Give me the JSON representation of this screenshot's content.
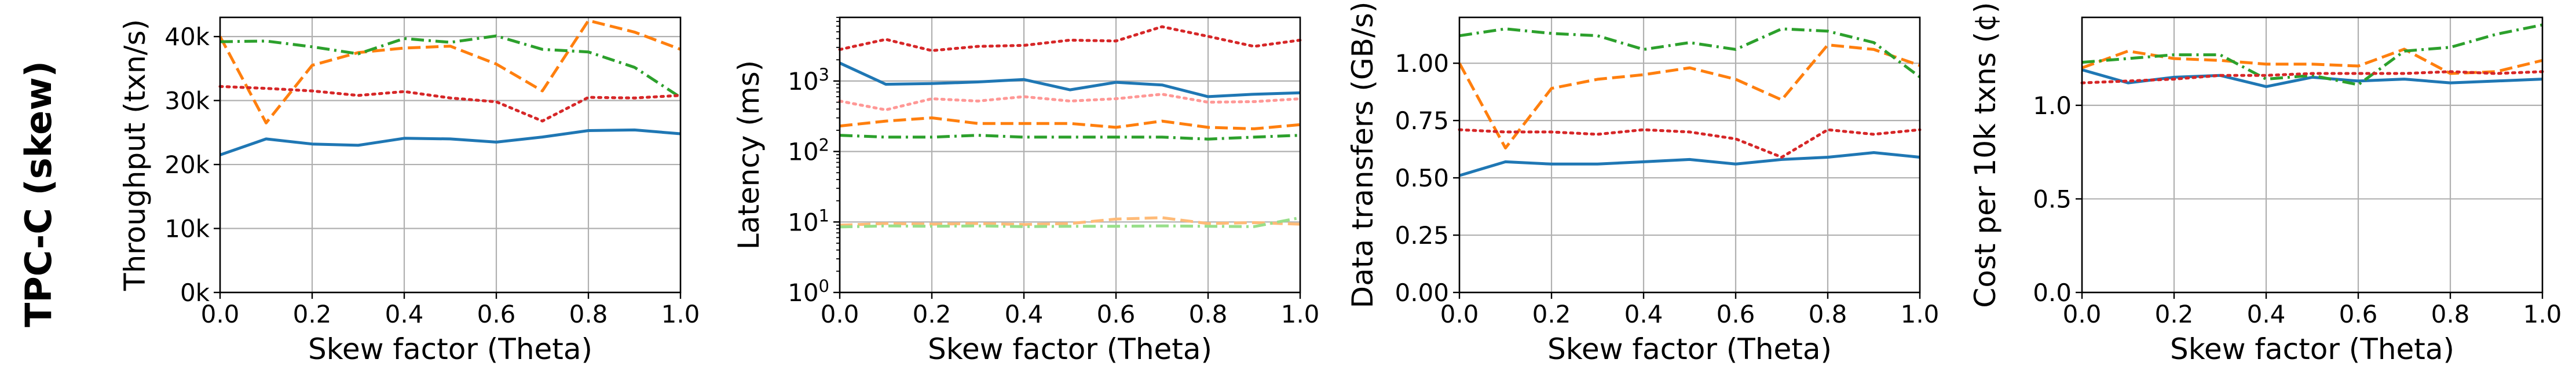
{
  "row_label": "TPC-C (skew)",
  "chart_data": [
    {
      "type": "line",
      "xlabel": "Skew factor (Theta)",
      "ylabel": "Throughput (txn/s)",
      "xlim": [
        0,
        1
      ],
      "ylim": [
        0,
        43000
      ],
      "yscale": "linear",
      "grid": true,
      "x_ticks": [
        0,
        0.2,
        0.4,
        0.6,
        0.8,
        1.0
      ],
      "x_tick_labels": [
        "0.0",
        "0.2",
        "0.4",
        "0.6",
        "0.8",
        "1.0"
      ],
      "y_ticks": [
        0,
        10000,
        20000,
        30000,
        40000
      ],
      "y_tick_labels": [
        "0k",
        "10k",
        "20k",
        "30k",
        "40k"
      ],
      "x": [
        0,
        0.1,
        0.2,
        0.3,
        0.4,
        0.5,
        0.6,
        0.7,
        0.8,
        0.9,
        1.0
      ],
      "series": [
        {
          "color": "#1f77b4",
          "style": "solid",
          "values": [
            21500,
            24000,
            23200,
            23000,
            24100,
            24000,
            23500,
            24300,
            25300,
            25400,
            24800
          ]
        },
        {
          "color": "#ff7f0e",
          "style": "dashed",
          "values": [
            40000,
            26500,
            35500,
            37500,
            38200,
            38500,
            35700,
            31500,
            42500,
            40700,
            38000
          ]
        },
        {
          "color": "#2ca02c",
          "style": "dashdot",
          "values": [
            39200,
            39300,
            38400,
            37300,
            39700,
            39100,
            40100,
            38000,
            37600,
            35200,
            30500
          ]
        },
        {
          "color": "#d62728",
          "style": "dotted",
          "values": [
            32200,
            31900,
            31500,
            30800,
            31400,
            30400,
            29800,
            26800,
            30500,
            30400,
            30800
          ]
        }
      ]
    },
    {
      "type": "line",
      "xlabel": "Skew factor (Theta)",
      "ylabel": "Latency (ms)",
      "xlim": [
        0,
        1
      ],
      "ylim": [
        1,
        8000
      ],
      "yscale": "log",
      "grid": true,
      "x_ticks": [
        0,
        0.2,
        0.4,
        0.6,
        0.8,
        1.0
      ],
      "x_tick_labels": [
        "0.0",
        "0.2",
        "0.4",
        "0.6",
        "0.8",
        "1.0"
      ],
      "y_ticks": [
        1,
        10,
        100,
        1000
      ],
      "y_tick_labels": [
        "10^0",
        "10^1",
        "10^2",
        "10^3"
      ],
      "x": [
        0,
        0.1,
        0.2,
        0.3,
        0.4,
        0.5,
        0.6,
        0.7,
        0.8,
        0.9,
        1.0
      ],
      "series": [
        {
          "color": "#1f77b4",
          "style": "solid",
          "values": [
            1800,
            900,
            920,
            970,
            1050,
            750,
            960,
            880,
            600,
            650,
            680
          ]
        },
        {
          "color": "#ff7f0e",
          "style": "dashed",
          "values": [
            230,
            270,
            300,
            250,
            250,
            250,
            220,
            270,
            220,
            210,
            240
          ]
        },
        {
          "color": "#2ca02c",
          "style": "dashdot",
          "values": [
            170,
            160,
            160,
            170,
            160,
            160,
            160,
            160,
            150,
            160,
            170
          ]
        },
        {
          "color": "#d62728",
          "style": "dotted",
          "values": [
            2800,
            3900,
            2700,
            3100,
            3200,
            3800,
            3700,
            5900,
            4300,
            3100,
            3800
          ]
        },
        {
          "color": "#ff9896",
          "style": "dotted",
          "values": [
            520,
            390,
            560,
            520,
            600,
            520,
            560,
            650,
            500,
            510,
            560
          ]
        },
        {
          "color": "#ffbb78",
          "style": "dashed",
          "values": [
            9,
            9.5,
            9.3,
            9.5,
            9.2,
            9.5,
            11,
            11.5,
            9.5,
            9.8,
            9.3
          ]
        },
        {
          "color": "#98df8a",
          "style": "dashdot",
          "values": [
            8.5,
            8.8,
            8.7,
            8.8,
            8.6,
            8.7,
            8.7,
            8.8,
            8.7,
            8.6,
            11.5
          ]
        }
      ]
    },
    {
      "type": "line",
      "xlabel": "Skew factor (Theta)",
      "ylabel": "Data transfers (GB/s)",
      "xlim": [
        0,
        1
      ],
      "ylim": [
        0,
        1.2
      ],
      "yscale": "linear",
      "grid": true,
      "x_ticks": [
        0,
        0.2,
        0.4,
        0.6,
        0.8,
        1.0
      ],
      "x_tick_labels": [
        "0.0",
        "0.2",
        "0.4",
        "0.6",
        "0.8",
        "1.0"
      ],
      "y_ticks": [
        0,
        0.25,
        0.5,
        0.75,
        1.0
      ],
      "y_tick_labels": [
        "0.00",
        "0.25",
        "0.50",
        "0.75",
        "1.00"
      ],
      "x": [
        0,
        0.1,
        0.2,
        0.3,
        0.4,
        0.5,
        0.6,
        0.7,
        0.8,
        0.9,
        1.0
      ],
      "series": [
        {
          "color": "#1f77b4",
          "style": "solid",
          "values": [
            0.51,
            0.57,
            0.56,
            0.56,
            0.57,
            0.58,
            0.56,
            0.58,
            0.59,
            0.61,
            0.59
          ]
        },
        {
          "color": "#ff7f0e",
          "style": "dashed",
          "values": [
            1.0,
            0.63,
            0.89,
            0.93,
            0.95,
            0.98,
            0.93,
            0.84,
            1.08,
            1.06,
            0.99
          ]
        },
        {
          "color": "#2ca02c",
          "style": "dashdot",
          "values": [
            1.12,
            1.15,
            1.13,
            1.12,
            1.06,
            1.09,
            1.06,
            1.15,
            1.14,
            1.09,
            0.94
          ]
        },
        {
          "color": "#d62728",
          "style": "dotted",
          "values": [
            0.71,
            0.7,
            0.7,
            0.69,
            0.71,
            0.7,
            0.67,
            0.59,
            0.71,
            0.69,
            0.71
          ]
        }
      ]
    },
    {
      "type": "line",
      "xlabel": "Skew factor (Theta)",
      "ylabel": "Cost per 10k txns (¢)",
      "xlim": [
        0,
        1
      ],
      "ylim": [
        0,
        1.47
      ],
      "yscale": "linear",
      "grid": true,
      "x_ticks": [
        0,
        0.2,
        0.4,
        0.6,
        0.8,
        1.0
      ],
      "x_tick_labels": [
        "0.0",
        "0.2",
        "0.4",
        "0.6",
        "0.8",
        "1.0"
      ],
      "y_ticks": [
        0,
        0.5,
        1.0
      ],
      "y_tick_labels": [
        "0.0",
        "0.5",
        "1.0"
      ],
      "x": [
        0,
        0.1,
        0.2,
        0.3,
        0.4,
        0.5,
        0.6,
        0.7,
        0.8,
        0.9,
        1.0
      ],
      "series": [
        {
          "color": "#1f77b4",
          "style": "solid",
          "values": [
            1.19,
            1.12,
            1.15,
            1.16,
            1.1,
            1.15,
            1.13,
            1.14,
            1.12,
            1.13,
            1.14
          ]
        },
        {
          "color": "#ff7f0e",
          "style": "dashed",
          "values": [
            1.2,
            1.29,
            1.25,
            1.24,
            1.22,
            1.22,
            1.21,
            1.3,
            1.17,
            1.18,
            1.24
          ]
        },
        {
          "color": "#2ca02c",
          "style": "dashdot",
          "values": [
            1.23,
            1.25,
            1.27,
            1.27,
            1.14,
            1.16,
            1.11,
            1.29,
            1.31,
            1.38,
            1.43
          ]
        },
        {
          "color": "#d62728",
          "style": "dotted",
          "values": [
            1.12,
            1.13,
            1.14,
            1.16,
            1.16,
            1.17,
            1.17,
            1.17,
            1.18,
            1.17,
            1.18
          ]
        }
      ]
    }
  ]
}
